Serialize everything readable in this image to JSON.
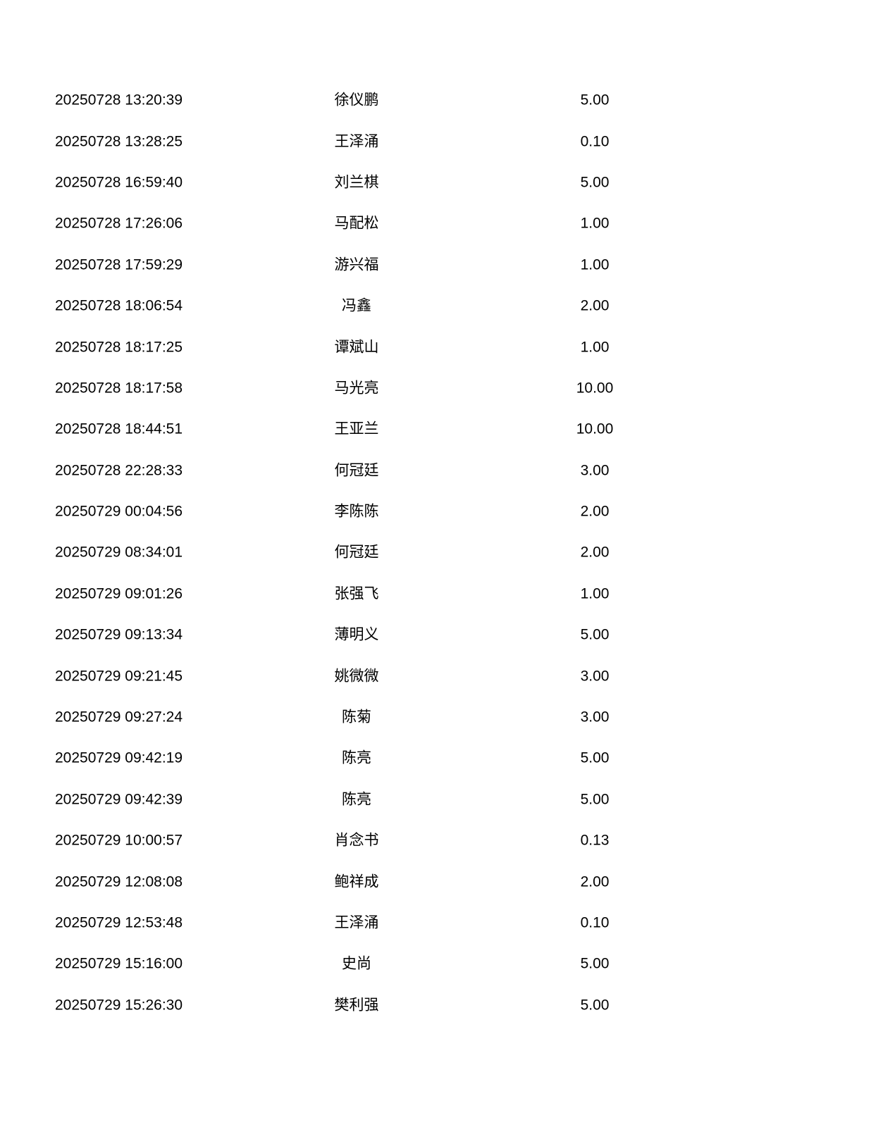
{
  "page": {
    "background_color": "#ffffff",
    "text_color": "#000000"
  },
  "transactions": {
    "columns": [
      "time",
      "name",
      "amount"
    ],
    "rows": [
      {
        "time": "20250728 13:20:39",
        "name": "徐仪鹏",
        "amount": "5.00"
      },
      {
        "time": "20250728 13:28:25",
        "name": "王泽涌",
        "amount": "0.10"
      },
      {
        "time": "20250728 16:59:40",
        "name": "刘兰棋",
        "amount": "5.00"
      },
      {
        "time": "20250728 17:26:06",
        "name": "马配松",
        "amount": "1.00"
      },
      {
        "time": "20250728 17:59:29",
        "name": "游兴福",
        "amount": "1.00"
      },
      {
        "time": "20250728 18:06:54",
        "name": "冯鑫",
        "amount": "2.00"
      },
      {
        "time": "20250728 18:17:25",
        "name": "谭斌山",
        "amount": "1.00"
      },
      {
        "time": "20250728 18:17:58",
        "name": "马光亮",
        "amount": "10.00"
      },
      {
        "time": "20250728 18:44:51",
        "name": "王亚兰",
        "amount": "10.00"
      },
      {
        "time": "20250728 22:28:33",
        "name": "何冠廷",
        "amount": "3.00"
      },
      {
        "time": "20250729 00:04:56",
        "name": "李陈陈",
        "amount": "2.00"
      },
      {
        "time": "20250729 08:34:01",
        "name": "何冠廷",
        "amount": "2.00"
      },
      {
        "time": "20250729 09:01:26",
        "name": "张强飞",
        "amount": "1.00"
      },
      {
        "time": "20250729 09:13:34",
        "name": "薄明义",
        "amount": "5.00"
      },
      {
        "time": "20250729 09:21:45",
        "name": "姚微微",
        "amount": "3.00"
      },
      {
        "time": "20250729 09:27:24",
        "name": "陈菊",
        "amount": "3.00"
      },
      {
        "time": "20250729 09:42:19",
        "name": "陈亮",
        "amount": "5.00"
      },
      {
        "time": "20250729 09:42:39",
        "name": "陈亮",
        "amount": "5.00"
      },
      {
        "time": "20250729 10:00:57",
        "name": "肖念书",
        "amount": "0.13"
      },
      {
        "time": "20250729 12:08:08",
        "name": "鲍祥成",
        "amount": "2.00"
      },
      {
        "time": "20250729 12:53:48",
        "name": "王泽涌",
        "amount": "0.10"
      },
      {
        "time": "20250729 15:16:00",
        "name": "史尚",
        "amount": "5.00"
      },
      {
        "time": "20250729 15:26:30",
        "name": "樊利强",
        "amount": "5.00"
      }
    ]
  }
}
